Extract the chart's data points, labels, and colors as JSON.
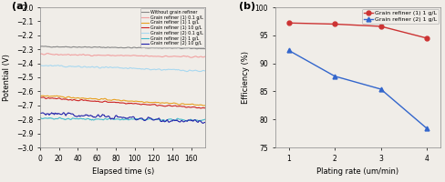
{
  "panel_a": {
    "title": "(a)",
    "xlabel": "Elapsed time (s)",
    "ylabel": "Potential (V)",
    "xlim": [
      0,
      175
    ],
    "ylim": [
      -3.0,
      -2.0
    ],
    "yticks": [
      -3.0,
      -2.9,
      -2.8,
      -2.7,
      -2.6,
      -2.5,
      -2.4,
      -2.3,
      -2.2,
      -2.1,
      -2.0
    ],
    "xticks": [
      0,
      20,
      40,
      60,
      80,
      100,
      120,
      140,
      160
    ],
    "bg_color": "#f0ede8",
    "series": [
      {
        "label": "Without grain refiner",
        "color": "#888888",
        "start": -2.28,
        "end": -2.295,
        "noise": 0.003
      },
      {
        "label": "Grain refiner (1) 0.1 g/L",
        "color": "#f0a0a0",
        "start": -2.335,
        "end": -2.355,
        "noise": 0.004
      },
      {
        "label": "Grain refiner (1) 1 g/L",
        "color": "#e8a020",
        "start": -2.63,
        "end": -2.7,
        "noise": 0.004
      },
      {
        "label": "Grain refiner (1) 10 g/L",
        "color": "#cc2222",
        "start": -2.645,
        "end": -2.72,
        "noise": 0.004
      },
      {
        "label": "Grain refiner (2) 0.1 g/L",
        "color": "#a8d8f0",
        "start": -2.415,
        "end": -2.455,
        "noise": 0.005
      },
      {
        "label": "Grain refiner (2) 1 g/L",
        "color": "#44bbcc",
        "start": -2.795,
        "end": -2.805,
        "noise": 0.006
      },
      {
        "label": "Grain refiner (2) 10 g/L",
        "color": "#2222aa",
        "start": -2.755,
        "end": -2.82,
        "noise": 0.012
      }
    ]
  },
  "panel_b": {
    "title": "(b)",
    "xlabel": "Plating rate (um/min)",
    "ylabel": "Efficiency (%)",
    "xlim": [
      0.7,
      4.3
    ],
    "ylim": [
      75,
      100
    ],
    "yticks": [
      75,
      80,
      85,
      90,
      95,
      100
    ],
    "xticks": [
      1,
      2,
      3,
      4
    ],
    "bg_color": "#f0ede8",
    "series": [
      {
        "label": "Grain refiner (1) 1 g/L",
        "color": "#cc3333",
        "x": [
          1,
          2,
          3,
          4
        ],
        "y": [
          97.2,
          97.0,
          96.6,
          94.5
        ],
        "marker": "o"
      },
      {
        "label": "Grain refiner (2) 1 g/L",
        "color": "#3366cc",
        "x": [
          1,
          2,
          3,
          4
        ],
        "y": [
          92.3,
          87.7,
          85.4,
          78.4
        ],
        "marker": "^"
      }
    ]
  },
  "fig_bg": "#f0ede8"
}
